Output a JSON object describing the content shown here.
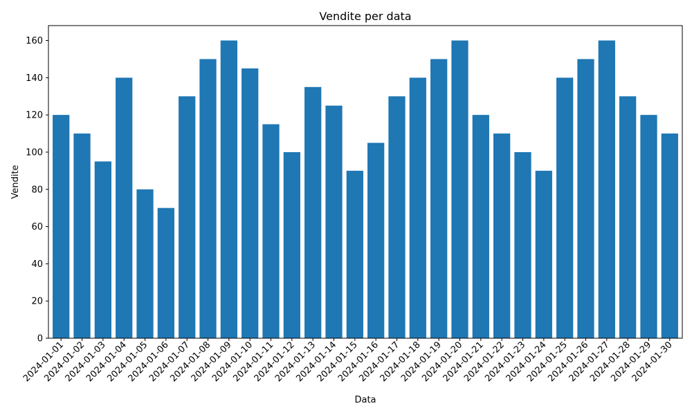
{
  "chart_data": {
    "type": "bar",
    "title": "Vendite per data",
    "xlabel": "Data",
    "ylabel": "Vendite",
    "categories": [
      "2024-01-01",
      "2024-01-02",
      "2024-01-03",
      "2024-01-04",
      "2024-01-05",
      "2024-01-06",
      "2024-01-07",
      "2024-01-08",
      "2024-01-09",
      "2024-01-10",
      "2024-01-11",
      "2024-01-12",
      "2024-01-13",
      "2024-01-14",
      "2024-01-15",
      "2024-01-16",
      "2024-01-17",
      "2024-01-18",
      "2024-01-19",
      "2024-01-20",
      "2024-01-21",
      "2024-01-22",
      "2024-01-23",
      "2024-01-24",
      "2024-01-25",
      "2024-01-26",
      "2024-01-27",
      "2024-01-28",
      "2024-01-29",
      "2024-01-30"
    ],
    "values": [
      120,
      110,
      95,
      140,
      80,
      70,
      130,
      150,
      160,
      145,
      115,
      100,
      135,
      125,
      90,
      105,
      130,
      140,
      150,
      160,
      120,
      110,
      100,
      90,
      140,
      150,
      160,
      130,
      120,
      110
    ],
    "ylim": [
      0,
      168
    ],
    "yticks": [
      0,
      20,
      40,
      60,
      80,
      100,
      120,
      140,
      160
    ],
    "grid": false,
    "bar_color": "#1f77b4"
  }
}
